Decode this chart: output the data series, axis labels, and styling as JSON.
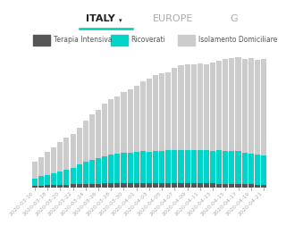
{
  "title": "ITALY",
  "title_arrow": "▾",
  "subtitle_underline_color": "#00c9b1",
  "tab2": "EUROPE",
  "tab3": "G",
  "legend": [
    "Terapia Intensiva",
    "Ricoverati",
    "Isolamento Domiciliare"
  ],
  "legend_colors": [
    "#555555",
    "#00d4c8",
    "#cccccc"
  ],
  "dates": [
    "2020-03-16",
    "2020-03-17",
    "2020-03-18",
    "2020-03-19",
    "2020-03-20",
    "2020-03-21",
    "2020-03-22",
    "2020-03-23",
    "2020-03-24",
    "2020-03-25",
    "2020-03-26",
    "2020-03-27",
    "2020-03-28",
    "2020-03-29",
    "2020-03-30",
    "2020-03-31",
    "2020-04-01",
    "2020-04-02",
    "2020-04-03",
    "2020-04-04",
    "2020-04-05",
    "2020-04-06",
    "2020-04-07",
    "2020-04-08",
    "2020-04-09",
    "2020-04-10",
    "2020-04-11",
    "2020-04-12",
    "2020-04-13",
    "2020-04-14",
    "2020-04-15",
    "2020-04-16",
    "2020-04-17",
    "2020-04-18",
    "2020-04-19",
    "2020-04-20",
    "2020-04-21"
  ],
  "terapia_intensiva": [
    1328,
    1582,
    1851,
    2060,
    2257,
    2498,
    2655,
    2857,
    3009,
    3204,
    3396,
    3489,
    3612,
    3732,
    3856,
    3906,
    4023,
    4035,
    4068,
    4053,
    3994,
    3981,
    3977,
    3994,
    3906,
    3856,
    3693,
    3605,
    3488,
    3381,
    3260,
    3186,
    3079,
    2936,
    2812,
    2635,
    2573
  ],
  "ricoverati": [
    6650,
    8372,
    9663,
    11025,
    12428,
    13779,
    14935,
    17708,
    20692,
    22116,
    23112,
    24753,
    26029,
    26676,
    27386,
    27795,
    28192,
    28761,
    28187,
    29079,
    28949,
    29604,
    29832,
    30119,
    29894,
    30062,
    30574,
    30099,
    29832,
    30207,
    29957,
    29986,
    29684,
    28741,
    27968,
    26893,
    26445
  ],
  "isolamento_domiciliare": [
    14955,
    17708,
    20603,
    23073,
    26522,
    28697,
    30920,
    33648,
    37130,
    40803,
    43752,
    48134,
    50456,
    51908,
    55270,
    57482,
    60498,
    63374,
    66414,
    69176,
    70584,
    71252,
    74386,
    76680,
    78084,
    78060,
    78083,
    78069,
    79930,
    81436,
    83324,
    84293,
    85388,
    85388,
    86498,
    86498,
    87395
  ],
  "bar_width": 0.85,
  "bg_color": "#ffffff",
  "grid_color": "#e8e8e8",
  "axis_label_color": "#aaaaaa",
  "axis_label_fontsize": 4.5,
  "title_fontsize": 8,
  "legend_fontsize": 5.5,
  "tab_color_active": "#222222",
  "tab_color_inactive": "#aaaaaa"
}
